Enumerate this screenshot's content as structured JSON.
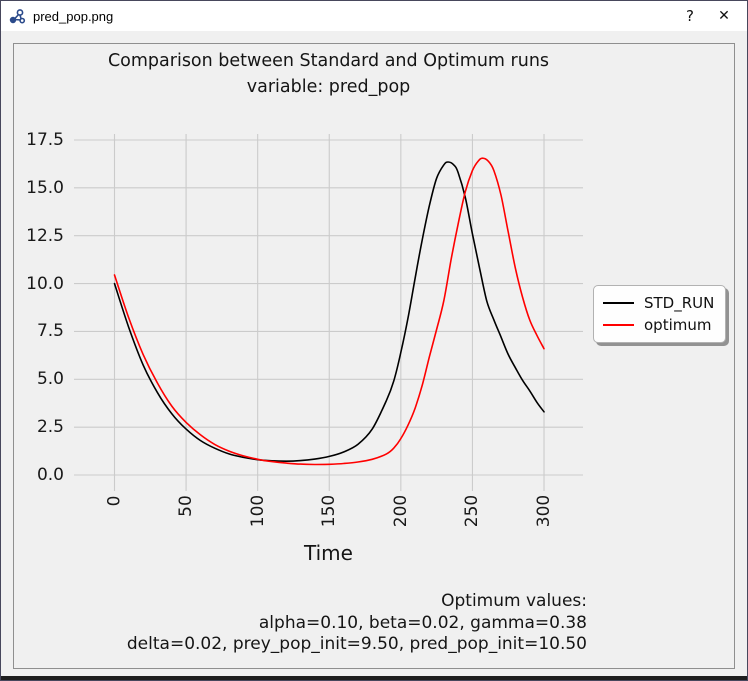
{
  "window": {
    "title": "pred_pop.png",
    "controls": {
      "help": "?",
      "close": "✕"
    }
  },
  "chart_data": {
    "type": "line",
    "title": "Comparison between Standard and Optimum runs",
    "subtitle": "variable: pred_pop",
    "xlabel": "Time",
    "ylabel": "",
    "xlim": [
      -28,
      327
    ],
    "ylim": [
      -0.4,
      17.8
    ],
    "grid": true,
    "background_color": "#f0f0f0",
    "grid_color": "#cbcbcb",
    "x_ticks": {
      "values": [
        0,
        50,
        100,
        150,
        200,
        250,
        300
      ],
      "labels": [
        "0",
        "50",
        "100",
        "150",
        "200",
        "250",
        "300"
      ],
      "rotation": 90
    },
    "y_ticks": {
      "values": [
        0,
        2.5,
        5,
        7.5,
        10,
        12.5,
        15,
        17.5
      ],
      "labels": [
        "0.0",
        "2.5",
        "5.0",
        "7.5",
        "10.0",
        "12.5",
        "15.0",
        "17.5"
      ]
    },
    "legend": {
      "position": "outside-right",
      "entries": [
        {
          "label": "STD_RUN",
          "color": "#000000"
        },
        {
          "label": "optimum",
          "color": "#ff0000"
        }
      ]
    },
    "series": [
      {
        "name": "STD_RUN",
        "color": "#000000",
        "points": [
          [
            0,
            10.0
          ],
          [
            10,
            7.7
          ],
          [
            20,
            5.75
          ],
          [
            30,
            4.3
          ],
          [
            40,
            3.2
          ],
          [
            50,
            2.4
          ],
          [
            60,
            1.8
          ],
          [
            70,
            1.4
          ],
          [
            80,
            1.1
          ],
          [
            90,
            0.92
          ],
          [
            100,
            0.8
          ],
          [
            110,
            0.74
          ],
          [
            120,
            0.72
          ],
          [
            130,
            0.75
          ],
          [
            140,
            0.83
          ],
          [
            150,
            0.97
          ],
          [
            160,
            1.2
          ],
          [
            170,
            1.6
          ],
          [
            180,
            2.4
          ],
          [
            190,
            3.9
          ],
          [
            195,
            4.9
          ],
          [
            200,
            6.4
          ],
          [
            205,
            8.2
          ],
          [
            210,
            10.3
          ],
          [
            215,
            12.3
          ],
          [
            220,
            14.1
          ],
          [
            225,
            15.5
          ],
          [
            230,
            16.2
          ],
          [
            233,
            16.35
          ],
          [
            237,
            16.2
          ],
          [
            240,
            15.8
          ],
          [
            245,
            14.5
          ],
          [
            250,
            12.6
          ],
          [
            255,
            10.8
          ],
          [
            260,
            9.1
          ],
          [
            265,
            8.1
          ],
          [
            270,
            7.2
          ],
          [
            275,
            6.3
          ],
          [
            280,
            5.6
          ],
          [
            285,
            4.95
          ],
          [
            290,
            4.4
          ],
          [
            295,
            3.8
          ],
          [
            300,
            3.3
          ]
        ]
      },
      {
        "name": "optimum",
        "color": "#ff0000",
        "points": [
          [
            0,
            10.45
          ],
          [
            10,
            8.2
          ],
          [
            20,
            6.3
          ],
          [
            30,
            4.8
          ],
          [
            40,
            3.6
          ],
          [
            50,
            2.75
          ],
          [
            60,
            2.1
          ],
          [
            70,
            1.6
          ],
          [
            80,
            1.25
          ],
          [
            90,
            1.0
          ],
          [
            100,
            0.82
          ],
          [
            110,
            0.7
          ],
          [
            120,
            0.62
          ],
          [
            130,
            0.57
          ],
          [
            140,
            0.55
          ],
          [
            150,
            0.56
          ],
          [
            160,
            0.6
          ],
          [
            170,
            0.68
          ],
          [
            180,
            0.82
          ],
          [
            190,
            1.1
          ],
          [
            195,
            1.4
          ],
          [
            200,
            1.9
          ],
          [
            205,
            2.6
          ],
          [
            210,
            3.5
          ],
          [
            215,
            4.7
          ],
          [
            220,
            6.2
          ],
          [
            225,
            7.6
          ],
          [
            230,
            9.1
          ],
          [
            235,
            11.2
          ],
          [
            240,
            13.1
          ],
          [
            245,
            14.8
          ],
          [
            250,
            15.9
          ],
          [
            254,
            16.4
          ],
          [
            257,
            16.55
          ],
          [
            261,
            16.4
          ],
          [
            265,
            15.9
          ],
          [
            270,
            14.6
          ],
          [
            275,
            12.7
          ],
          [
            280,
            10.8
          ],
          [
            285,
            9.3
          ],
          [
            290,
            8.1
          ],
          [
            295,
            7.3
          ],
          [
            300,
            6.6
          ]
        ]
      }
    ],
    "annotation": {
      "align": "right",
      "lines": [
        "Optimum values:",
        "alpha=0.10, beta=0.02, gamma=0.38",
        "delta=0.02, prey_pop_init=9.50, pred_pop_init=10.50"
      ]
    }
  }
}
